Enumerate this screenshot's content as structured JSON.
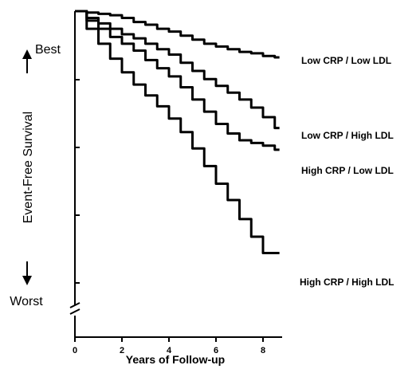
{
  "chart_data": {
    "type": "line",
    "title": "",
    "xlabel": "Years of Follow-up",
    "ylabel": "Event-Free Survival",
    "y_top_label": "Best",
    "y_bottom_label": "Worst",
    "xlim": [
      0,
      8.7
    ],
    "ylim": [
      0.8,
      1.0
    ],
    "x_ticks": [
      0,
      2,
      4,
      6,
      8
    ],
    "y_ticks_unlabeled": true,
    "axis_break": "y",
    "series": [
      {
        "name": "Low CRP / Low LDL",
        "x": [
          0,
          0.5,
          1,
          1.5,
          2,
          2.5,
          3,
          3.5,
          4,
          4.5,
          5,
          5.5,
          6,
          6.5,
          7,
          7.5,
          8,
          8.5,
          8.7
        ],
        "y": [
          1.0,
          0.999,
          0.998,
          0.997,
          0.995,
          0.992,
          0.99,
          0.987,
          0.985,
          0.982,
          0.979,
          0.976,
          0.974,
          0.972,
          0.97,
          0.969,
          0.967,
          0.966,
          0.966
        ]
      },
      {
        "name": "Low CRP / High LDL",
        "x": [
          0,
          0.5,
          1,
          1.5,
          2,
          2.5,
          3,
          3.5,
          4,
          4.5,
          5,
          5.5,
          6,
          6.5,
          7,
          7.5,
          8,
          8.5,
          8.7
        ],
        "y": [
          1.0,
          0.995,
          0.991,
          0.987,
          0.983,
          0.98,
          0.976,
          0.972,
          0.968,
          0.962,
          0.956,
          0.95,
          0.945,
          0.94,
          0.935,
          0.929,
          0.922,
          0.914,
          0.914
        ]
      },
      {
        "name": "High CRP / Low LDL",
        "x": [
          0,
          0.5,
          1,
          1.5,
          2,
          2.5,
          3,
          3.5,
          4,
          4.5,
          5,
          5.5,
          6,
          6.5,
          7,
          7.5,
          8,
          8.5,
          8.7
        ],
        "y": [
          1.0,
          0.993,
          0.987,
          0.981,
          0.976,
          0.971,
          0.964,
          0.958,
          0.952,
          0.944,
          0.935,
          0.926,
          0.917,
          0.91,
          0.905,
          0.903,
          0.901,
          0.898,
          0.898
        ]
      },
      {
        "name": "High CRP / High LDL",
        "x": [
          0,
          0.5,
          1,
          1.5,
          2,
          2.5,
          3,
          3.5,
          4,
          4.5,
          5,
          5.5,
          6,
          6.5,
          7,
          7.5,
          8,
          8.5,
          8.7
        ],
        "y": [
          1.0,
          0.987,
          0.976,
          0.965,
          0.955,
          0.946,
          0.938,
          0.93,
          0.921,
          0.911,
          0.899,
          0.886,
          0.873,
          0.861,
          0.847,
          0.834,
          0.822,
          0.822,
          0.822
        ]
      }
    ],
    "colors": {
      "line": "#000000",
      "background": "#ffffff"
    }
  }
}
